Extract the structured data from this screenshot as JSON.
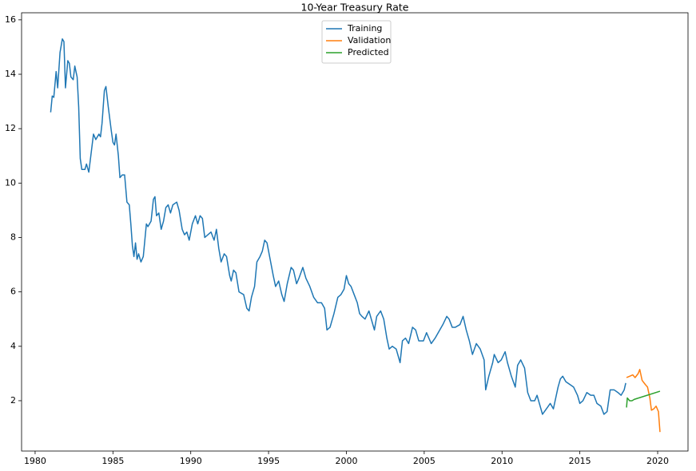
{
  "chart_data": {
    "type": "line",
    "title": "10-Year Treasury Rate",
    "xlim": [
      1979.13,
      2021.95
    ],
    "ylim": [
      0.15,
      16.26
    ],
    "xticks": [
      1980,
      1985,
      1990,
      1995,
      2000,
      2005,
      2010,
      2015,
      2020
    ],
    "yticks": [
      2,
      4,
      6,
      8,
      10,
      12,
      14,
      16
    ],
    "legend": "upper center",
    "grid": false,
    "series": [
      {
        "name": "Training",
        "color": "#1f77b4",
        "x": [
          1981.0,
          1981.1,
          1981.2,
          1981.35,
          1981.45,
          1981.6,
          1981.75,
          1981.85,
          1981.95,
          1982.1,
          1982.2,
          1982.3,
          1982.45,
          1982.55,
          1982.7,
          1982.8,
          1982.9,
          1983.0,
          1983.2,
          1983.3,
          1983.45,
          1983.6,
          1983.75,
          1983.9,
          1984.1,
          1984.2,
          1984.3,
          1984.45,
          1984.55,
          1984.7,
          1984.9,
          1985.0,
          1985.1,
          1985.2,
          1985.35,
          1985.45,
          1985.6,
          1985.75,
          1985.9,
          1986.05,
          1986.15,
          1986.25,
          1986.35,
          1986.45,
          1986.55,
          1986.65,
          1986.8,
          1986.95,
          1987.15,
          1987.25,
          1987.45,
          1987.6,
          1987.7,
          1987.8,
          1987.95,
          1988.1,
          1988.25,
          1988.4,
          1988.55,
          1988.7,
          1988.85,
          1989.1,
          1989.25,
          1989.45,
          1989.6,
          1989.75,
          1989.9,
          1990.1,
          1990.3,
          1990.45,
          1990.6,
          1990.75,
          1990.9,
          1991.1,
          1991.3,
          1991.5,
          1991.65,
          1991.8,
          1991.95,
          1992.15,
          1992.3,
          1992.5,
          1992.6,
          1992.75,
          1992.9,
          1993.1,
          1993.4,
          1993.6,
          1993.75,
          1993.9,
          1994.1,
          1994.25,
          1994.45,
          1994.6,
          1994.75,
          1994.9,
          1995.1,
          1995.3,
          1995.45,
          1995.65,
          1995.85,
          1996.0,
          1996.2,
          1996.45,
          1996.6,
          1996.8,
          1996.95,
          1997.2,
          1997.4,
          1997.65,
          1997.9,
          1998.15,
          1998.4,
          1998.6,
          1998.75,
          1998.95,
          1999.2,
          1999.45,
          1999.65,
          1999.85,
          2000.0,
          2000.15,
          2000.3,
          2000.5,
          2000.7,
          2000.85,
          2001.0,
          2001.2,
          2001.45,
          2001.65,
          2001.8,
          2001.95,
          2002.2,
          2002.4,
          2002.6,
          2002.75,
          2002.95,
          2003.2,
          2003.45,
          2003.6,
          2003.8,
          2004.0,
          2004.25,
          2004.45,
          2004.65,
          2004.95,
          2005.15,
          2005.45,
          2005.7,
          2005.9,
          2006.2,
          2006.45,
          2006.6,
          2006.8,
          2007.0,
          2007.3,
          2007.5,
          2007.7,
          2007.9,
          2008.1,
          2008.35,
          2008.6,
          2008.85,
          2008.95,
          2009.15,
          2009.4,
          2009.5,
          2009.75,
          2009.95,
          2010.2,
          2010.35,
          2010.6,
          2010.85,
          2011.0,
          2011.2,
          2011.45,
          2011.65,
          2011.85,
          2012.1,
          2012.25,
          2012.45,
          2012.6,
          2012.85,
          2013.1,
          2013.3,
          2013.6,
          2013.75,
          2013.9,
          2014.1,
          2014.35,
          2014.6,
          2014.85,
          2015.0,
          2015.2,
          2015.45,
          2015.7,
          2015.9,
          2016.1,
          2016.35,
          2016.55,
          2016.75,
          2016.95,
          2017.2,
          2017.45,
          2017.65,
          2017.85,
          2017.95
        ],
        "values": [
          12.6,
          13.2,
          13.15,
          14.1,
          13.5,
          14.8,
          15.3,
          15.2,
          13.5,
          14.5,
          14.4,
          13.9,
          13.8,
          14.3,
          13.9,
          12.8,
          10.9,
          10.5,
          10.5,
          10.7,
          10.4,
          11.1,
          11.8,
          11.6,
          11.8,
          11.7,
          12.2,
          13.4,
          13.55,
          12.8,
          11.9,
          11.5,
          11.4,
          11.8,
          11.0,
          10.2,
          10.3,
          10.3,
          9.3,
          9.2,
          8.5,
          7.7,
          7.3,
          7.8,
          7.2,
          7.4,
          7.1,
          7.3,
          8.5,
          8.4,
          8.6,
          9.4,
          9.5,
          8.8,
          8.9,
          8.3,
          8.6,
          9.1,
          9.2,
          8.9,
          9.2,
          9.3,
          9.0,
          8.3,
          8.1,
          8.2,
          7.9,
          8.5,
          8.8,
          8.5,
          8.8,
          8.7,
          8.0,
          8.1,
          8.2,
          7.9,
          8.3,
          7.6,
          7.1,
          7.4,
          7.3,
          6.6,
          6.4,
          6.8,
          6.7,
          6.0,
          5.9,
          5.4,
          5.3,
          5.8,
          6.2,
          7.1,
          7.3,
          7.5,
          7.9,
          7.8,
          7.2,
          6.6,
          6.2,
          6.4,
          5.9,
          5.65,
          6.3,
          6.9,
          6.8,
          6.3,
          6.5,
          6.9,
          6.5,
          6.2,
          5.8,
          5.6,
          5.6,
          5.4,
          4.6,
          4.7,
          5.2,
          5.8,
          5.9,
          6.1,
          6.6,
          6.3,
          6.2,
          5.9,
          5.6,
          5.2,
          5.1,
          5.0,
          5.3,
          4.9,
          4.6,
          5.1,
          5.3,
          5.0,
          4.3,
          3.9,
          4.0,
          3.9,
          3.4,
          4.2,
          4.3,
          4.1,
          4.7,
          4.6,
          4.2,
          4.2,
          4.5,
          4.1,
          4.3,
          4.5,
          4.8,
          5.1,
          5.0,
          4.7,
          4.7,
          4.8,
          5.1,
          4.6,
          4.2,
          3.7,
          4.1,
          3.9,
          3.5,
          2.4,
          2.9,
          3.4,
          3.7,
          3.4,
          3.5,
          3.8,
          3.4,
          2.9,
          2.5,
          3.3,
          3.5,
          3.2,
          2.3,
          2.0,
          2.0,
          2.2,
          1.8,
          1.5,
          1.7,
          1.9,
          1.7,
          2.5,
          2.8,
          2.9,
          2.7,
          2.6,
          2.5,
          2.2,
          1.9,
          2.0,
          2.3,
          2.2,
          2.2,
          1.9,
          1.8,
          1.5,
          1.6,
          2.4,
          2.4,
          2.3,
          2.2,
          2.4,
          2.65
        ]
      },
      {
        "name": "Validation",
        "color": "#ff7f0e",
        "x": [
          2018.0,
          2018.2,
          2018.4,
          2018.55,
          2018.75,
          2018.85,
          2019.0,
          2019.2,
          2019.35,
          2019.5,
          2019.6,
          2019.75,
          2019.9,
          2020.05,
          2020.15
        ],
        "values": [
          2.85,
          2.9,
          2.95,
          2.85,
          3.0,
          3.15,
          2.75,
          2.6,
          2.5,
          2.1,
          1.65,
          1.7,
          1.8,
          1.6,
          0.85
        ]
      },
      {
        "name": "Predicted",
        "color": "#2ca02c",
        "x": [
          2018.0,
          2018.05,
          2018.2,
          2018.35,
          2018.5,
          2020.15
        ],
        "values": [
          1.75,
          2.1,
          2.0,
          2.0,
          2.05,
          2.35
        ]
      }
    ]
  }
}
